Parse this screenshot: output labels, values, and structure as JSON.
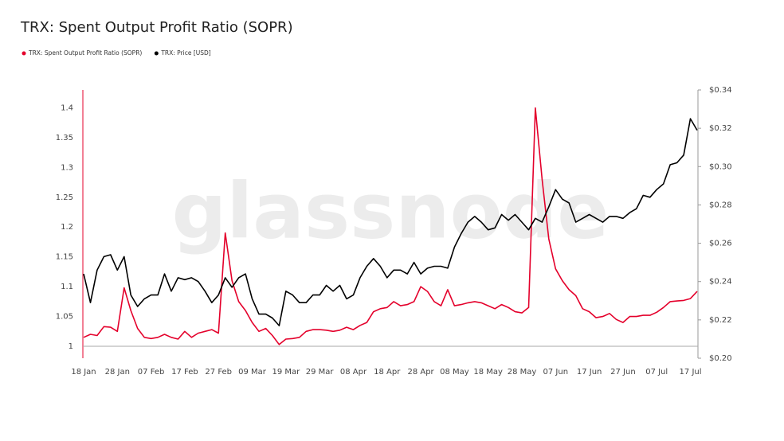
{
  "chart_data": {
    "type": "line",
    "title": "TRX: Spent Output Profit Ratio (SOPR)",
    "watermark": "glassnode",
    "categories": [
      "18 Jan",
      null,
      null,
      null,
      null,
      "28 Jan",
      null,
      null,
      null,
      null,
      "07 Feb",
      null,
      null,
      null,
      null,
      "17 Feb",
      null,
      null,
      null,
      null,
      "27 Feb",
      null,
      null,
      null,
      null,
      "09 Mar",
      null,
      null,
      null,
      null,
      "19 Mar",
      null,
      null,
      null,
      null,
      "29 Mar",
      null,
      null,
      null,
      null,
      "08 Apr",
      null,
      null,
      null,
      null,
      "18 Apr",
      null,
      null,
      null,
      null,
      "28 Apr",
      null,
      null,
      null,
      null,
      "08 May",
      null,
      null,
      null,
      null,
      "18 May",
      null,
      null,
      null,
      null,
      "28 May",
      null,
      null,
      null,
      null,
      "07 Jun",
      null,
      null,
      null,
      null,
      "17 Jun",
      null,
      null,
      null,
      null,
      "27 Jun",
      null,
      null,
      null,
      null,
      "07 Jul",
      null,
      null,
      null,
      null,
      "17 Jul",
      null
    ],
    "series": [
      {
        "name": "TRX: Spent Output Profit Ratio (SOPR)",
        "color": "#e4002b",
        "axis": "y",
        "values": [
          1.015,
          1.02,
          1.018,
          1.033,
          1.032,
          1.025,
          1.098,
          1.06,
          1.03,
          1.015,
          1.013,
          1.015,
          1.02,
          1.015,
          1.012,
          1.025,
          1.015,
          1.022,
          1.025,
          1.028,
          1.022,
          1.19,
          1.11,
          1.075,
          1.06,
          1.04,
          1.025,
          1.03,
          1.018,
          1.003,
          1.012,
          1.013,
          1.015,
          1.025,
          1.028,
          1.028,
          1.027,
          1.025,
          1.027,
          1.032,
          1.028,
          1.035,
          1.04,
          1.058,
          1.063,
          1.065,
          1.075,
          1.068,
          1.07,
          1.075,
          1.1,
          1.092,
          1.075,
          1.068,
          1.095,
          1.068,
          1.07,
          1.073,
          1.075,
          1.073,
          1.068,
          1.063,
          1.07,
          1.065,
          1.058,
          1.056,
          1.065,
          1.4,
          1.28,
          1.18,
          1.13,
          1.11,
          1.095,
          1.085,
          1.063,
          1.058,
          1.048,
          1.05,
          1.055,
          1.045,
          1.04,
          1.05,
          1.05,
          1.052,
          1.052,
          1.057,
          1.065,
          1.075,
          1.076,
          1.077,
          1.08,
          1.092
        ]
      },
      {
        "name": "TRX: Price [USD]",
        "color": "#000000",
        "axis": "y2",
        "values": [
          0.244,
          0.229,
          0.246,
          0.253,
          0.254,
          0.246,
          0.253,
          0.233,
          0.227,
          0.231,
          0.233,
          0.233,
          0.244,
          0.235,
          0.242,
          0.241,
          0.242,
          0.24,
          0.235,
          0.229,
          0.233,
          0.242,
          0.237,
          0.242,
          0.244,
          0.231,
          0.223,
          0.223,
          0.221,
          0.217,
          0.235,
          0.233,
          0.229,
          0.229,
          0.233,
          0.233,
          0.238,
          0.235,
          0.238,
          0.231,
          0.233,
          0.242,
          0.248,
          0.252,
          0.248,
          0.242,
          0.246,
          0.246,
          0.244,
          0.25,
          0.244,
          0.247,
          0.248,
          0.248,
          0.247,
          0.258,
          0.265,
          0.271,
          0.274,
          0.271,
          0.267,
          0.268,
          0.275,
          0.272,
          0.275,
          0.271,
          0.267,
          0.273,
          0.271,
          0.279,
          0.288,
          0.283,
          0.281,
          0.271,
          0.273,
          0.275,
          0.273,
          0.271,
          0.274,
          0.274,
          0.273,
          0.276,
          0.278,
          0.285,
          0.284,
          0.288,
          0.291,
          0.301,
          0.302,
          0.306,
          0.325,
          0.319
        ]
      }
    ],
    "ylim": [
      0.98,
      1.43
    ],
    "yticks": [
      1,
      1.05,
      1.1,
      1.15,
      1.2,
      1.25,
      1.3,
      1.35,
      1.4
    ],
    "y2lim": [
      0.2,
      0.34
    ],
    "y2ticks": [
      {
        "value": 0.2,
        "label": "$0.20"
      },
      {
        "value": 0.22,
        "label": "$0.22"
      },
      {
        "value": 0.24,
        "label": "$0.24"
      },
      {
        "value": 0.26,
        "label": "$0.26"
      },
      {
        "value": 0.28,
        "label": "$0.28"
      },
      {
        "value": 0.3,
        "label": "$0.30"
      },
      {
        "value": 0.32,
        "label": "$0.32"
      },
      {
        "value": 0.34,
        "label": "$0.34"
      }
    ],
    "legend": "top-left"
  }
}
